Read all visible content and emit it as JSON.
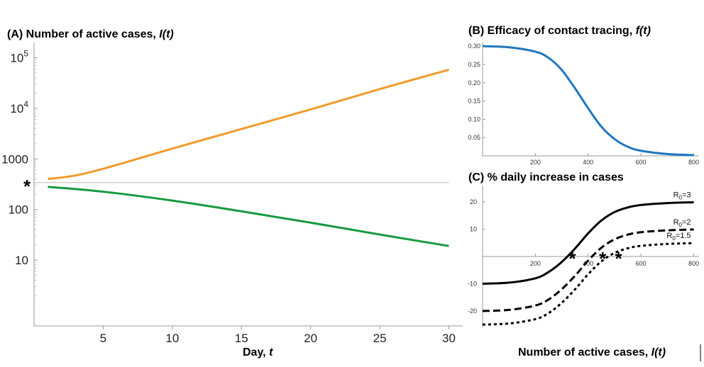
{
  "chart_data": [
    {
      "id": "A",
      "type": "line",
      "title_prefix": "(A) Number of active cases, ",
      "title_var": "I(t)",
      "xlabel_prefix": "Day, ",
      "xlabel_var": "t",
      "xlim": [
        0,
        31
      ],
      "x_ticks": [
        5,
        10,
        15,
        20,
        25,
        30
      ],
      "y_scale": "log",
      "ylim": [
        0.5,
        200000
      ],
      "y_tick_labels": [
        {
          "value": 10,
          "base": "10",
          "exp": ""
        },
        {
          "value": 100,
          "base": "100",
          "exp": ""
        },
        {
          "value": 1000,
          "base": "1000",
          "exp": ""
        },
        {
          "value": 10000,
          "base": "10",
          "exp": "4"
        },
        {
          "value": 100000,
          "base": "10",
          "exp": "5"
        }
      ],
      "reference_line": {
        "y": 340,
        "color": "#bbbbbb"
      },
      "marker": {
        "symbol": "*",
        "y": 340
      },
      "series": [
        {
          "color": "#f09a2a",
          "x": [
            1,
            3,
            5,
            7,
            10,
            15,
            20,
            25,
            30
          ],
          "y": [
            400,
            470,
            640,
            920,
            1600,
            3900,
            9500,
            24000,
            58000
          ]
        },
        {
          "color": "#159a3e",
          "x": [
            1,
            5,
            10,
            15,
            20,
            25,
            30
          ],
          "y": [
            280,
            225,
            150,
            92,
            55,
            32,
            19
          ]
        }
      ]
    },
    {
      "id": "B",
      "type": "line",
      "title_prefix": "(B) Efficacy of contact tracing, ",
      "title_var": "f(t)",
      "xlim": [
        0,
        820
      ],
      "x_ticks": [
        200,
        400,
        600,
        800
      ],
      "ylim": [
        0,
        0.31
      ],
      "y_ticks": [
        0.05,
        0.1,
        0.15,
        0.2,
        0.25,
        0.3
      ],
      "y_tick_labels": [
        "0.05",
        "0.10",
        "0.15",
        "0.20",
        "0.25",
        "0.30"
      ],
      "series": [
        {
          "color": "#1f77c0",
          "x": [
            0,
            100,
            200,
            250,
            300,
            350,
            400,
            450,
            500,
            550,
            600,
            700,
            800
          ],
          "y": [
            0.3,
            0.297,
            0.285,
            0.268,
            0.235,
            0.185,
            0.13,
            0.08,
            0.046,
            0.025,
            0.014,
            0.005,
            0.002
          ]
        }
      ]
    },
    {
      "id": "C",
      "type": "line",
      "title": "(C) % daily increase in cases",
      "xlabel_prefix": "Number of active cases, ",
      "xlabel_var": "I(t)",
      "xlim": [
        0,
        820
      ],
      "x_ticks": [
        200,
        400,
        600,
        800
      ],
      "ylim": [
        -26,
        26
      ],
      "y_ticks": [
        -20,
        -10,
        10,
        20
      ],
      "series": [
        {
          "label_base": "R",
          "label_sub": "0",
          "label_rest": "=3",
          "color": "#000000",
          "dash": "",
          "x": [
            0,
            100,
            200,
            250,
            300,
            350,
            400,
            450,
            500,
            550,
            600,
            700,
            800
          ],
          "y": [
            -10,
            -9.6,
            -8.0,
            -5.7,
            -2.0,
            2.9,
            8.5,
            13.2,
            16.3,
            18.0,
            18.9,
            19.6,
            19.9
          ]
        },
        {
          "label_base": "R",
          "label_sub": "0",
          "label_rest": "=2",
          "color": "#000000",
          "dash": "10,5",
          "x": [
            0,
            100,
            200,
            250,
            300,
            350,
            400,
            450,
            500,
            550,
            600,
            700,
            800
          ],
          "y": [
            -20,
            -19.6,
            -18.0,
            -15.8,
            -12.0,
            -7.1,
            -1.5,
            3.2,
            6.3,
            8.0,
            8.9,
            9.6,
            9.9
          ]
        },
        {
          "label_base": "R",
          "label_sub": "0",
          "label_rest": "=1.5",
          "color": "#000000",
          "dash": "4,4",
          "x": [
            0,
            100,
            200,
            250,
            300,
            350,
            400,
            450,
            500,
            550,
            600,
            700,
            800
          ],
          "y": [
            -25,
            -24.6,
            -23.0,
            -20.8,
            -17.0,
            -12.1,
            -6.5,
            -1.8,
            1.3,
            3.0,
            3.9,
            4.6,
            4.9
          ]
        }
      ],
      "markers": [
        {
          "symbol": "*",
          "x": 340,
          "y": 0
        },
        {
          "symbol": "*",
          "x": 455,
          "y": 0
        },
        {
          "symbol": "*",
          "x": 515,
          "y": 0
        }
      ]
    }
  ]
}
